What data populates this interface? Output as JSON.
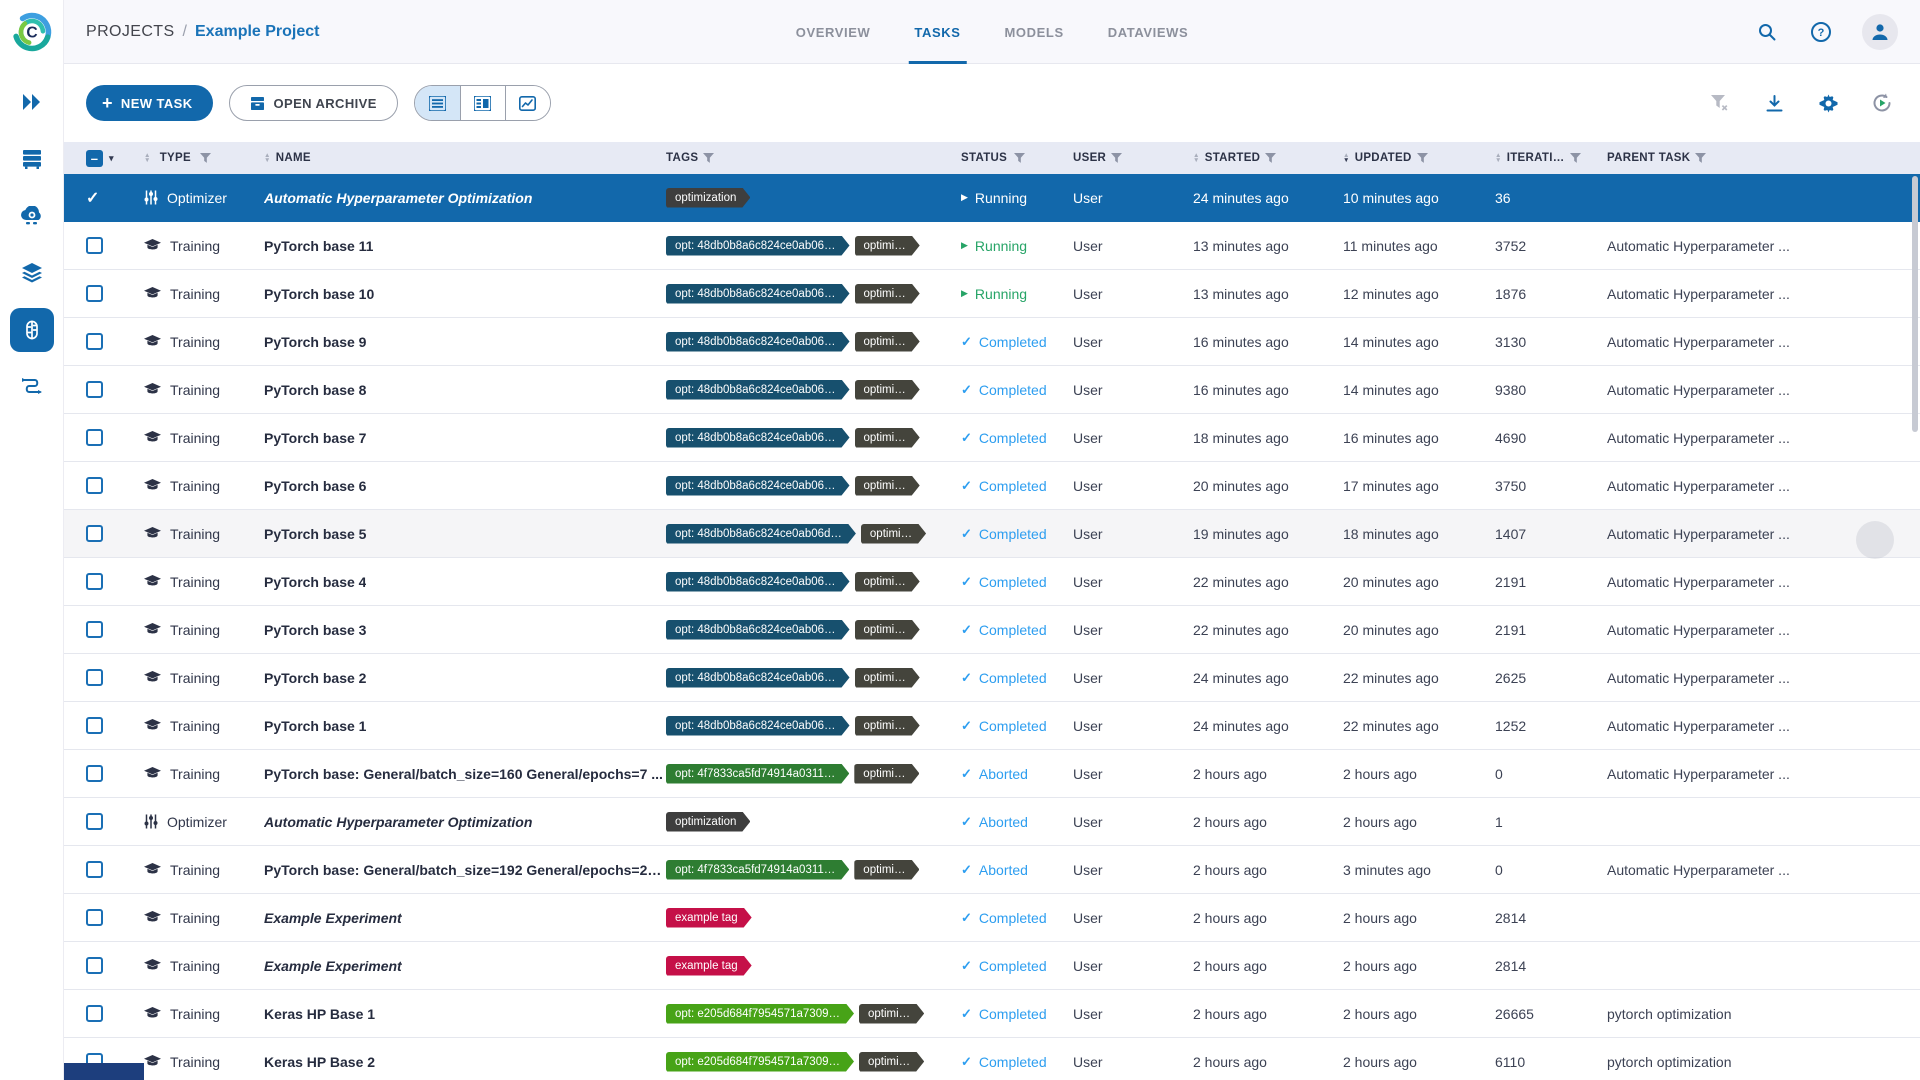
{
  "colors": {
    "accent": "#1268ab",
    "selected_row_bg": "#1268ab",
    "header_band": "#e7eaf4",
    "running_green": "#27a467",
    "completed_blue": "#2d9ef0",
    "tag_dark": "#3e3e3e",
    "tag_gray": "#44443c",
    "tag_navy": "#17506e",
    "tag_green_dark": "#2e7d32",
    "tag_green_bright": "#47a317",
    "tag_red": "#c51048"
  },
  "icons": {
    "logo": "clearml-logo",
    "sidebar": [
      "expand-icon",
      "queues-icon",
      "workers-icon",
      "datasets-icon",
      "projects-icon",
      "pipelines-icon"
    ],
    "topbar": [
      "search-icon",
      "help-icon",
      "user-avatar-icon"
    ],
    "toolbar_left": [
      "plus-icon",
      "archive-icon",
      "list-view-icon",
      "split-view-icon",
      "chart-view-icon"
    ],
    "toolbar_right": [
      "clear-filters-icon",
      "download-icon",
      "settings-gear-icon",
      "auto-refresh-icon"
    ],
    "row": [
      "training-cap-icon",
      "optimizer-sliders-icon",
      "play-icon",
      "check-icon"
    ]
  },
  "header": {
    "breadcrumb": {
      "root": "PROJECTS",
      "separator": "/",
      "current": "Example Project"
    },
    "tabs": [
      {
        "label": "OVERVIEW",
        "active": false
      },
      {
        "label": "TASKS",
        "active": true
      },
      {
        "label": "MODELS",
        "active": false
      },
      {
        "label": "DATAVIEWS",
        "active": false
      }
    ]
  },
  "toolbar": {
    "new_task_label": "NEW TASK",
    "open_archive_label": "OPEN ARCHIVE"
  },
  "table": {
    "columns": [
      {
        "label": "TYPE",
        "sortable": true,
        "filter": true
      },
      {
        "label": "NAME",
        "sortable": true,
        "filter": false
      },
      {
        "label": "TAGS",
        "sortable": false,
        "filter": true
      },
      {
        "label": "STATUS",
        "sortable": false,
        "filter": true
      },
      {
        "label": "USER",
        "sortable": false,
        "filter": true
      },
      {
        "label": "STARTED",
        "sortable": true,
        "filter": true
      },
      {
        "label": "UPDATED",
        "sortable": true,
        "filter": true,
        "sort_active": "desc"
      },
      {
        "label": "ITERATI…",
        "sortable": true,
        "filter": true
      },
      {
        "label": "PARENT TASK",
        "sortable": false,
        "filter": true
      }
    ],
    "rows": [
      {
        "selected": true,
        "hover": false,
        "type": "Optimizer",
        "name": "Automatic Hyperparameter Optimization",
        "italic": true,
        "tags": [
          {
            "text": "optimization",
            "color": "#3e3e3e"
          }
        ],
        "status": "Running",
        "user": "User",
        "started": "24 minutes ago",
        "updated": "10 minutes ago",
        "iterations": "36",
        "parent": ""
      },
      {
        "selected": false,
        "hover": false,
        "type": "Training",
        "name": "PyTorch base 11",
        "italic": false,
        "tags": [
          {
            "text": "opt: 48db0b8a6c824ce0ab06…",
            "color": "#17506e"
          },
          {
            "text": "optimi…",
            "color": "#44443c"
          }
        ],
        "status": "Running",
        "user": "User",
        "started": "13 minutes ago",
        "updated": "11 minutes ago",
        "iterations": "3752",
        "parent": "Automatic Hyperparameter ..."
      },
      {
        "selected": false,
        "hover": false,
        "type": "Training",
        "name": "PyTorch base 10",
        "italic": false,
        "tags": [
          {
            "text": "opt: 48db0b8a6c824ce0ab06…",
            "color": "#17506e"
          },
          {
            "text": "optimi…",
            "color": "#44443c"
          }
        ],
        "status": "Running",
        "user": "User",
        "started": "13 minutes ago",
        "updated": "12 minutes ago",
        "iterations": "1876",
        "parent": "Automatic Hyperparameter ..."
      },
      {
        "selected": false,
        "hover": false,
        "type": "Training",
        "name": "PyTorch base 9",
        "italic": false,
        "tags": [
          {
            "text": "opt: 48db0b8a6c824ce0ab06…",
            "color": "#17506e"
          },
          {
            "text": "optimi…",
            "color": "#44443c"
          }
        ],
        "status": "Completed",
        "user": "User",
        "started": "16 minutes ago",
        "updated": "14 minutes ago",
        "iterations": "3130",
        "parent": "Automatic Hyperparameter ..."
      },
      {
        "selected": false,
        "hover": false,
        "type": "Training",
        "name": "PyTorch base 8",
        "italic": false,
        "tags": [
          {
            "text": "opt: 48db0b8a6c824ce0ab06…",
            "color": "#17506e"
          },
          {
            "text": "optimi…",
            "color": "#44443c"
          }
        ],
        "status": "Completed",
        "user": "User",
        "started": "16 minutes ago",
        "updated": "14 minutes ago",
        "iterations": "9380",
        "parent": "Automatic Hyperparameter ..."
      },
      {
        "selected": false,
        "hover": false,
        "type": "Training",
        "name": "PyTorch base 7",
        "italic": false,
        "tags": [
          {
            "text": "opt: 48db0b8a6c824ce0ab06…",
            "color": "#17506e"
          },
          {
            "text": "optimi…",
            "color": "#44443c"
          }
        ],
        "status": "Completed",
        "user": "User",
        "started": "18 minutes ago",
        "updated": "16 minutes ago",
        "iterations": "4690",
        "parent": "Automatic Hyperparameter ..."
      },
      {
        "selected": false,
        "hover": false,
        "type": "Training",
        "name": "PyTorch base 6",
        "italic": false,
        "tags": [
          {
            "text": "opt: 48db0b8a6c824ce0ab06…",
            "color": "#17506e"
          },
          {
            "text": "optimi…",
            "color": "#44443c"
          }
        ],
        "status": "Completed",
        "user": "User",
        "started": "20 minutes ago",
        "updated": "17 minutes ago",
        "iterations": "3750",
        "parent": "Automatic Hyperparameter ..."
      },
      {
        "selected": false,
        "hover": true,
        "type": "Training",
        "name": "PyTorch base 5",
        "italic": false,
        "tags": [
          {
            "text": "opt: 48db0b8a6c824ce0ab06d…",
            "color": "#17506e"
          },
          {
            "text": "optimi…",
            "color": "#44443c"
          }
        ],
        "status": "Completed",
        "user": "User",
        "started": "19 minutes ago",
        "updated": "18 minutes ago",
        "iterations": "1407",
        "parent": "Automatic Hyperparameter ..."
      },
      {
        "selected": false,
        "hover": false,
        "type": "Training",
        "name": "PyTorch base 4",
        "italic": false,
        "tags": [
          {
            "text": "opt: 48db0b8a6c824ce0ab06…",
            "color": "#17506e"
          },
          {
            "text": "optimi…",
            "color": "#44443c"
          }
        ],
        "status": "Completed",
        "user": "User",
        "started": "22 minutes ago",
        "updated": "20 minutes ago",
        "iterations": "2191",
        "parent": "Automatic Hyperparameter ..."
      },
      {
        "selected": false,
        "hover": false,
        "type": "Training",
        "name": "PyTorch base 3",
        "italic": false,
        "tags": [
          {
            "text": "opt: 48db0b8a6c824ce0ab06…",
            "color": "#17506e"
          },
          {
            "text": "optimi…",
            "color": "#44443c"
          }
        ],
        "status": "Completed",
        "user": "User",
        "started": "22 minutes ago",
        "updated": "20 minutes ago",
        "iterations": "2191",
        "parent": "Automatic Hyperparameter ..."
      },
      {
        "selected": false,
        "hover": false,
        "type": "Training",
        "name": "PyTorch base 2",
        "italic": false,
        "tags": [
          {
            "text": "opt: 48db0b8a6c824ce0ab06…",
            "color": "#17506e"
          },
          {
            "text": "optimi…",
            "color": "#44443c"
          }
        ],
        "status": "Completed",
        "user": "User",
        "started": "24 minutes ago",
        "updated": "22 minutes ago",
        "iterations": "2625",
        "parent": "Automatic Hyperparameter ..."
      },
      {
        "selected": false,
        "hover": false,
        "type": "Training",
        "name": "PyTorch base 1",
        "italic": false,
        "tags": [
          {
            "text": "opt: 48db0b8a6c824ce0ab06…",
            "color": "#17506e"
          },
          {
            "text": "optimi…",
            "color": "#44443c"
          }
        ],
        "status": "Completed",
        "user": "User",
        "started": "24 minutes ago",
        "updated": "22 minutes ago",
        "iterations": "1252",
        "parent": "Automatic Hyperparameter ..."
      },
      {
        "selected": false,
        "hover": false,
        "type": "Training",
        "name": "PyTorch base: General/batch_size=160 General/epochs=7 ...",
        "italic": false,
        "tags": [
          {
            "text": "opt: 4f7833ca5fd74914a0311…",
            "color": "#2e7d32"
          },
          {
            "text": "optimi…",
            "color": "#44443c"
          }
        ],
        "status": "Aborted",
        "user": "User",
        "started": "2 hours ago",
        "updated": "2 hours ago",
        "iterations": "0",
        "parent": "Automatic Hyperparameter ..."
      },
      {
        "selected": false,
        "hover": false,
        "type": "Optimizer",
        "name": "Automatic Hyperparameter Optimization",
        "italic": true,
        "tags": [
          {
            "text": "optimization",
            "color": "#3e3e3e"
          }
        ],
        "status": "Aborted",
        "user": "User",
        "started": "2 hours ago",
        "updated": "2 hours ago",
        "iterations": "1",
        "parent": ""
      },
      {
        "selected": false,
        "hover": false,
        "type": "Training",
        "name": "PyTorch base: General/batch_size=192 General/epochs=20...",
        "italic": false,
        "tags": [
          {
            "text": "opt: 4f7833ca5fd74914a0311…",
            "color": "#2e7d32"
          },
          {
            "text": "optimi…",
            "color": "#44443c"
          }
        ],
        "status": "Aborted",
        "user": "User",
        "started": "2 hours ago",
        "updated": "3 minutes ago",
        "iterations": "0",
        "parent": "Automatic Hyperparameter ..."
      },
      {
        "selected": false,
        "hover": false,
        "type": "Training",
        "name": "Example Experiment",
        "italic": true,
        "tags": [
          {
            "text": "example tag",
            "color": "#c51048"
          }
        ],
        "status": "Completed",
        "user": "User",
        "started": "2 hours ago",
        "updated": "2 hours ago",
        "iterations": "2814",
        "parent": ""
      },
      {
        "selected": false,
        "hover": false,
        "type": "Training",
        "name": "Example Experiment",
        "italic": true,
        "tags": [
          {
            "text": "example tag",
            "color": "#c51048"
          }
        ],
        "status": "Completed",
        "user": "User",
        "started": "2 hours ago",
        "updated": "2 hours ago",
        "iterations": "2814",
        "parent": ""
      },
      {
        "selected": false,
        "hover": false,
        "type": "Training",
        "name": "Keras HP Base 1",
        "italic": false,
        "tags": [
          {
            "text": "opt: e205d684f7954571a7309…",
            "color": "#47a317"
          },
          {
            "text": "optimi…",
            "color": "#44443c"
          }
        ],
        "status": "Completed",
        "user": "User",
        "started": "2 hours ago",
        "updated": "2 hours ago",
        "iterations": "26665",
        "parent": "pytorch optimization"
      },
      {
        "selected": false,
        "hover": false,
        "type": "Training",
        "name": "Keras HP Base 2",
        "italic": false,
        "tags": [
          {
            "text": "opt: e205d684f7954571a7309…",
            "color": "#47a317"
          },
          {
            "text": "optimi…",
            "color": "#44443c"
          }
        ],
        "status": "Completed",
        "user": "User",
        "started": "2 hours ago",
        "updated": "2 hours ago",
        "iterations": "6110",
        "parent": "pytorch optimization"
      }
    ]
  }
}
